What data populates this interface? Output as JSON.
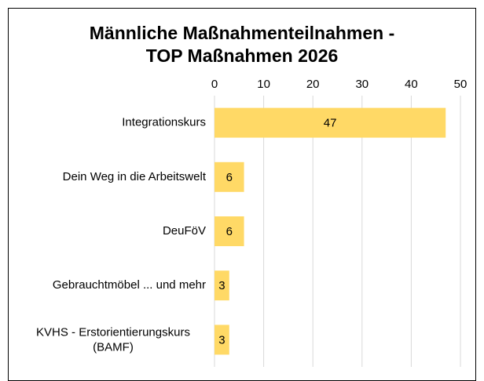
{
  "chart_data": {
    "type": "bar",
    "orientation": "horizontal",
    "title": "Männliche Maßnahmenteilnahmen - TOP Maßnahmen 2026",
    "categories": [
      "Integrationskurs",
      "Dein Weg in die Arbeitswelt",
      "DeuFöV",
      "Gebrauchtmöbel ... und mehr",
      "KVHS - Erstorientierungskurs (BAMF)"
    ],
    "values": [
      47,
      6,
      6,
      3,
      3
    ],
    "color": "#ffd966",
    "xlim": [
      0,
      50
    ],
    "xticks": [
      0,
      10,
      20,
      30,
      40,
      50
    ],
    "grid": true
  }
}
